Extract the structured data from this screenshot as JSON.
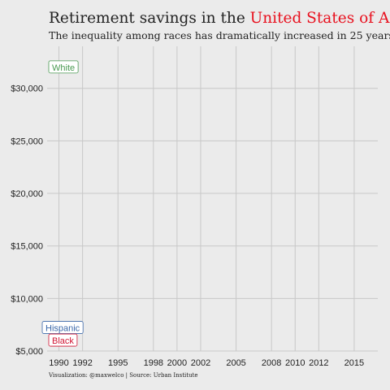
{
  "title_plain": "Retirement savings in the ",
  "title_highlight": "United States of America",
  "subtitle": "The inequality among races has dramatically increased in 25 years",
  "caption": "Visualization: @maxwelco | Source: Urban Institute",
  "colors": {
    "background": "#ebebeb",
    "grid": "#c8c8c8",
    "highlight": "#e8101e",
    "white": "#4a9a52",
    "hispanic": "#3a67a8",
    "black": "#d01433"
  },
  "chart_data": {
    "type": "line",
    "title": "Retirement savings in the United States of America",
    "subtitle": "The inequality among races has dramatically increased in 25 years",
    "x": [
      1990,
      1992,
      1995,
      1998,
      2000,
      2002,
      2005,
      2008,
      2010,
      2012,
      2015
    ],
    "xlim": [
      1989,
      2017
    ],
    "ylim": [
      5000,
      34000
    ],
    "yticks": [
      5000,
      10000,
      15000,
      20000,
      25000,
      30000
    ],
    "ytick_labels": [
      "$5,000",
      "$10,000",
      "$15,000",
      "$20,000",
      "$25,000",
      "$30,000"
    ],
    "xtick_labels": [
      "1990",
      "1992",
      "1995",
      "1998",
      "2000",
      "2002",
      "2005",
      "2008",
      "2010",
      "2012",
      "2015"
    ],
    "grid": true,
    "series": [
      {
        "name": "White",
        "x": [
          1989
        ],
        "values": [
          32000
        ]
      },
      {
        "name": "Hispanic",
        "x": [
          1989
        ],
        "values": [
          7200
        ]
      },
      {
        "name": "Black",
        "x": [
          1989
        ],
        "values": [
          6000
        ]
      }
    ]
  }
}
